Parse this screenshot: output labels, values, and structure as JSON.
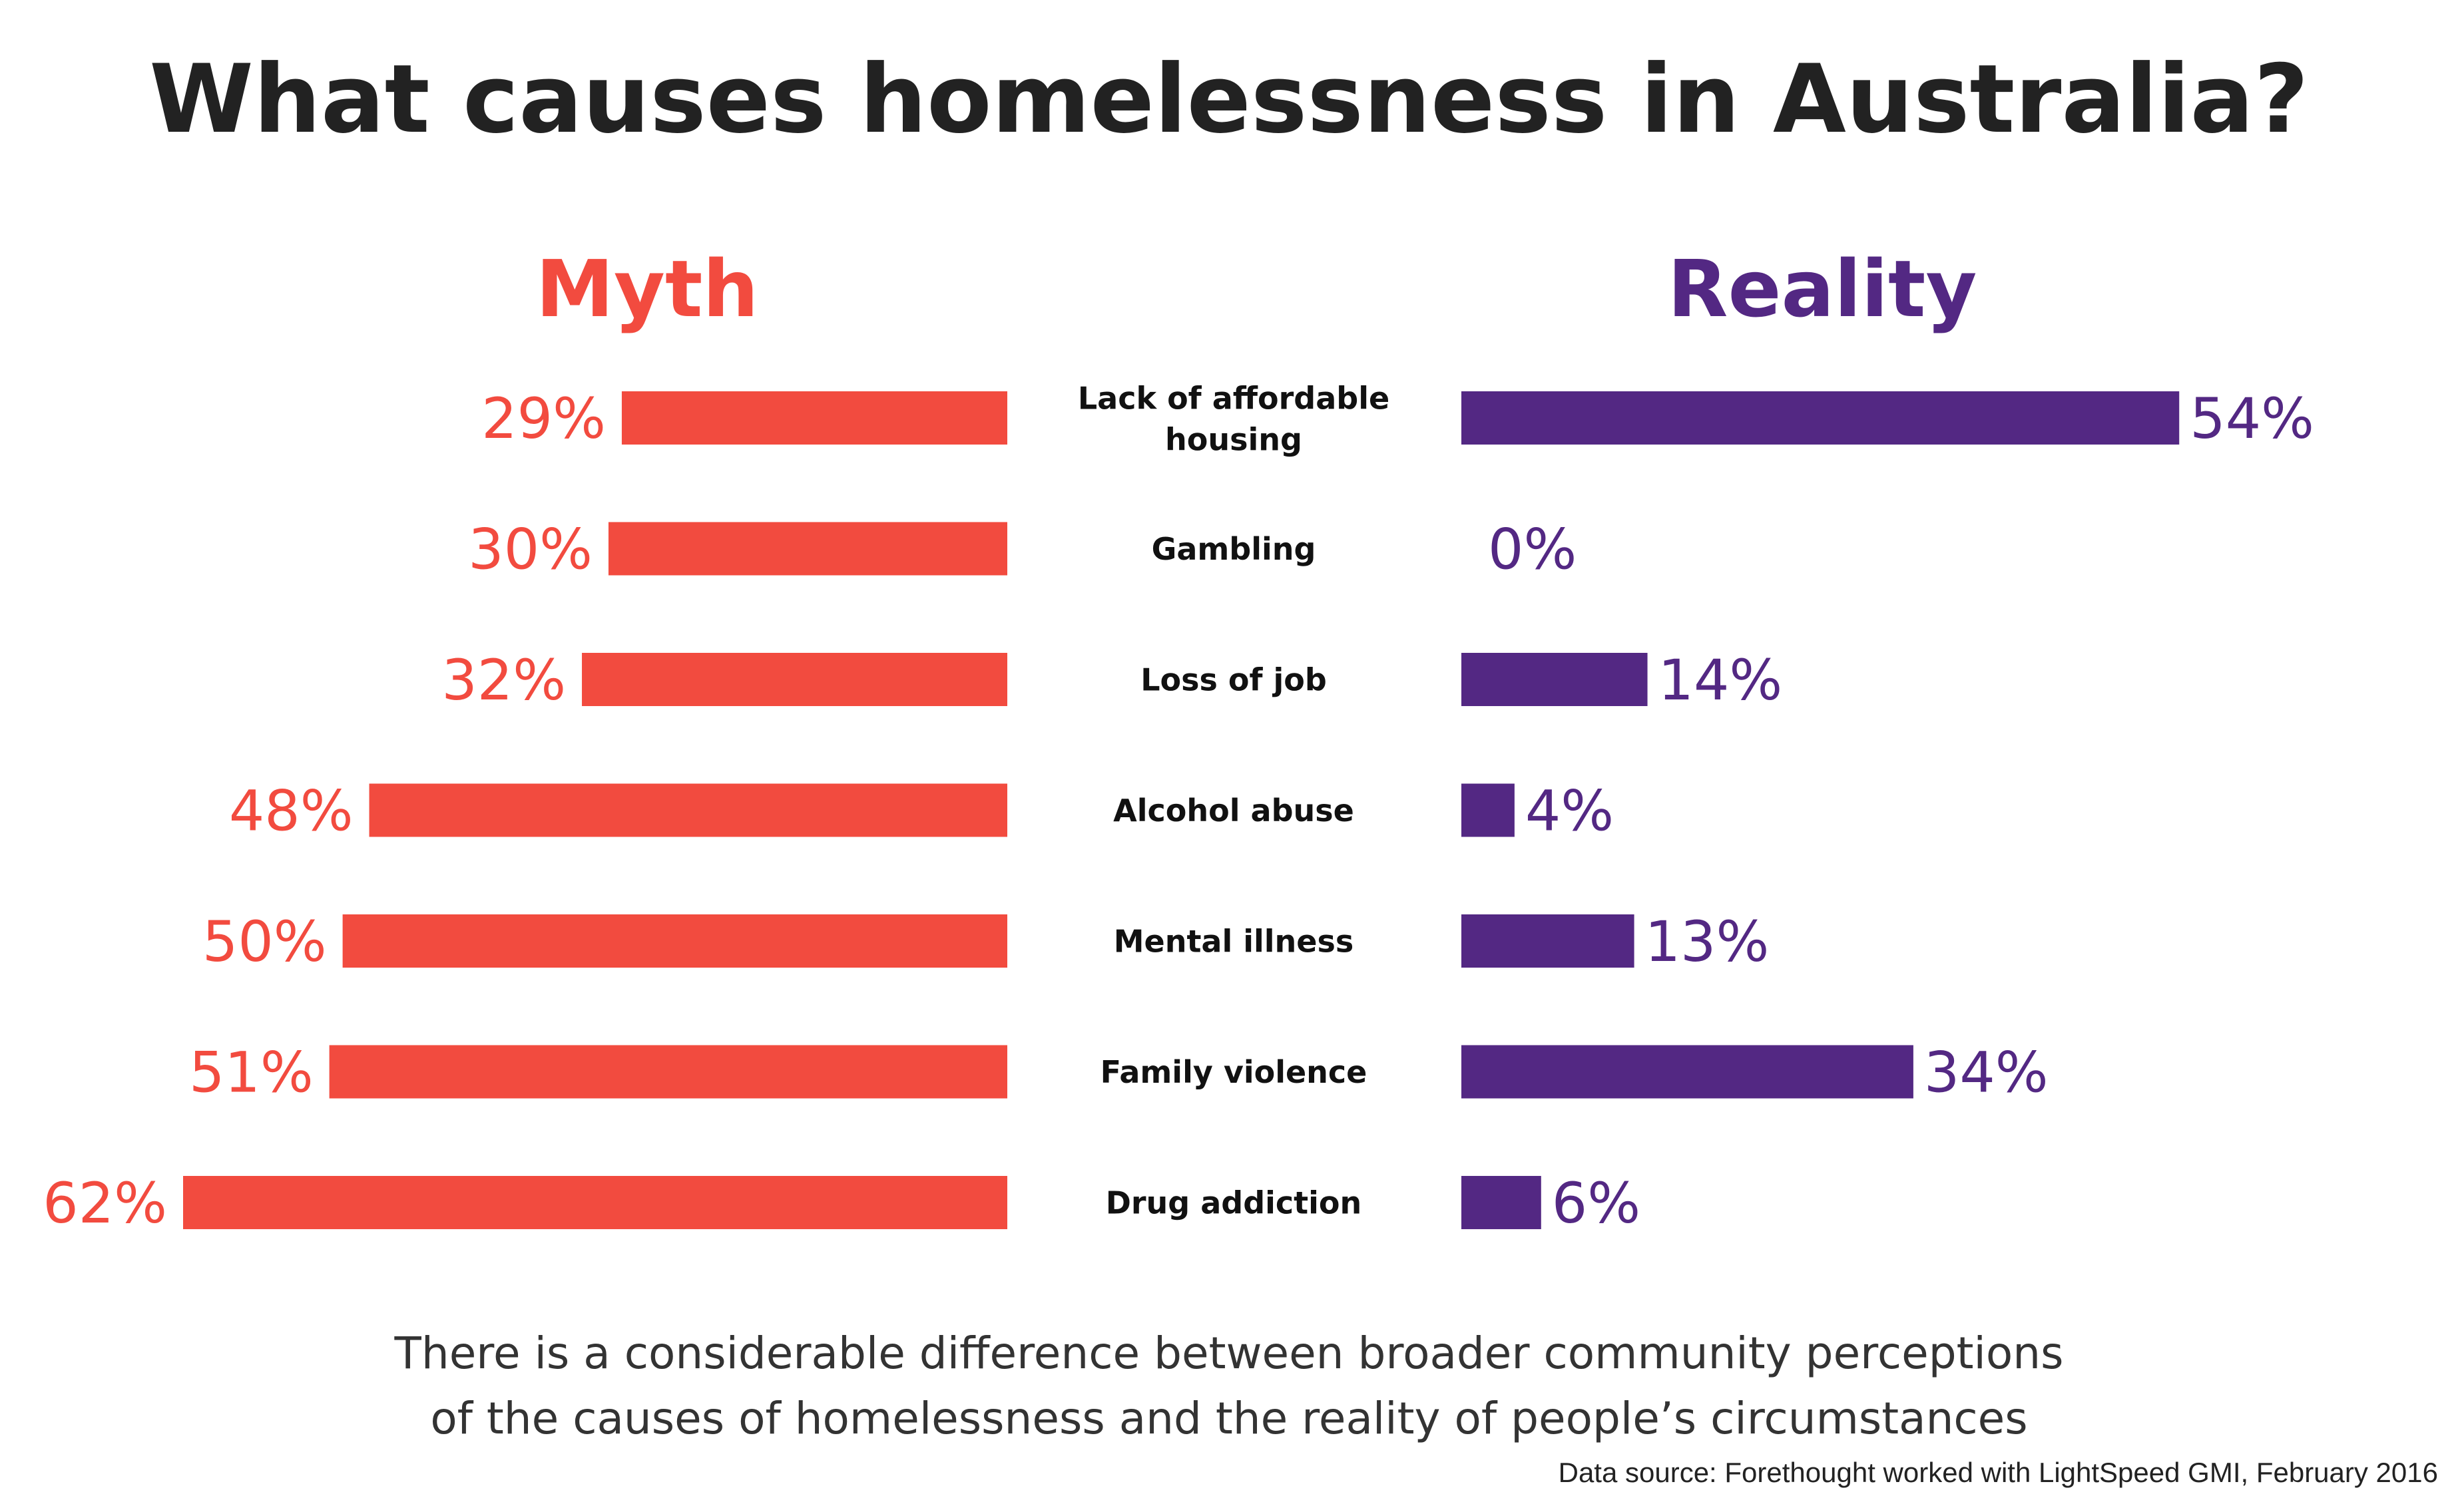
{
  "chart_data": {
    "type": "bar",
    "title": "What causes homelessness in Australia?",
    "categories": [
      "Lack of affordable housing",
      "Gambling",
      "Loss of job",
      "Alcohol abuse",
      "Mental illness",
      "Family violence",
      "Drug addiction"
    ],
    "series": [
      {
        "name": "Myth",
        "values": [
          29,
          30,
          32,
          48,
          50,
          51,
          62
        ],
        "labels": [
          "29%",
          "30%",
          "32%",
          "48%",
          "50%",
          "51%",
          "62%"
        ],
        "color": "#f24b3f"
      },
      {
        "name": "Reality",
        "values": [
          54,
          0,
          14,
          4,
          13,
          34,
          6
        ],
        "labels": [
          "54%",
          "0%",
          "14%",
          "4%",
          "13%",
          "34%",
          "6%"
        ],
        "color": "#532883"
      }
    ],
    "xlim": [
      0,
      62
    ],
    "xlabel": "",
    "ylabel": "",
    "legend": "column headers above each side"
  },
  "caption": {
    "line1": "There is a considerable difference between broader community perceptions",
    "line2": "of the causes of homelessness and the reality of people’s circumstances"
  },
  "source": "Data source: Forethought worked with LightSpeed GMI, February 2016",
  "colors": {
    "myth": "#f24b3f",
    "reality": "#532883",
    "title": "#222222"
  }
}
